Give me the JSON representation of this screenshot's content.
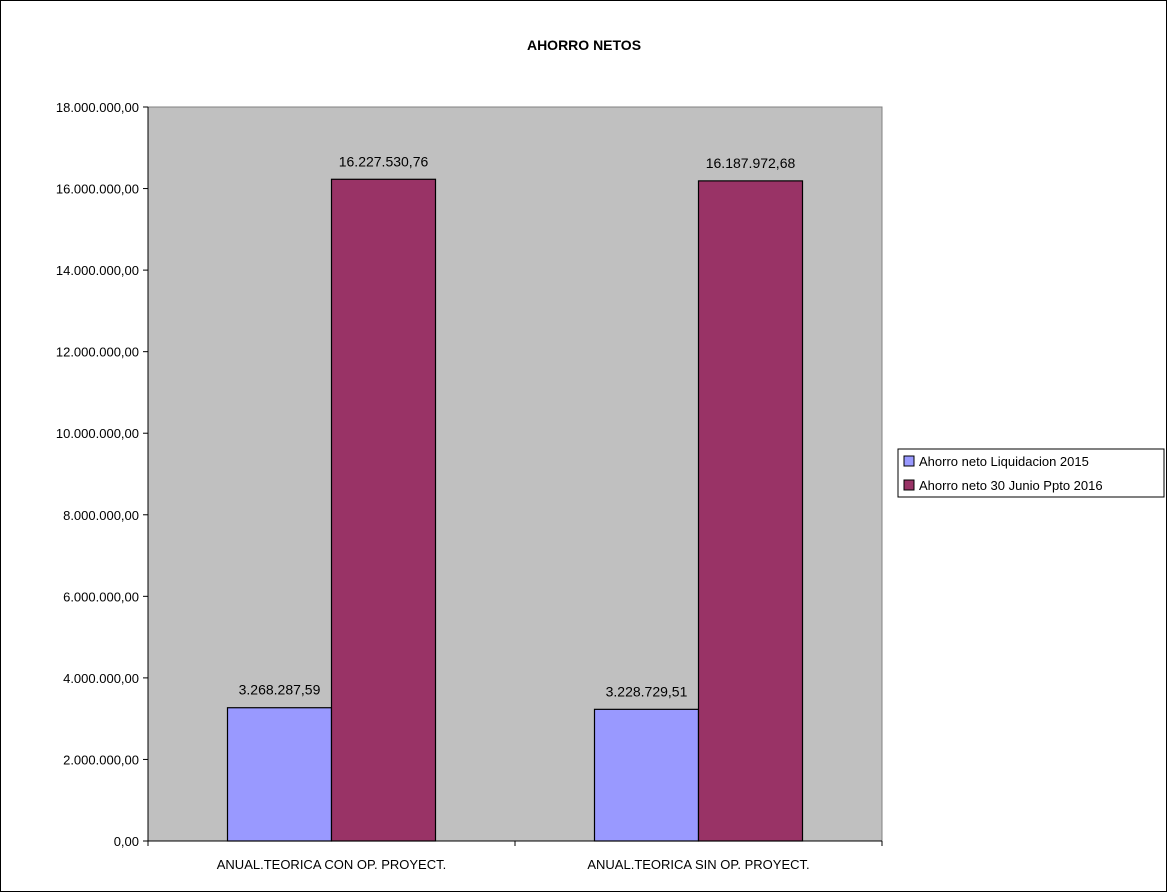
{
  "chart_data": {
    "type": "bar",
    "title": "AHORRO NETOS",
    "categories": [
      "ANUAL.TEORICA CON OP. PROYECT.",
      "ANUAL.TEORICA SIN OP. PROYECT."
    ],
    "series": [
      {
        "name": "Ahorro neto Liquidacion 2015",
        "color": "#9999ff",
        "values": [
          3268287.59,
          3228729.51
        ],
        "labels": [
          "3.268.287,59",
          "3.228.729,51"
        ]
      },
      {
        "name": "Ahorro neto 30 Junio Ppto 2016",
        "color": "#993366",
        "values": [
          16227530.76,
          16187972.68
        ],
        "labels": [
          "16.227.530,76",
          "16.187.972,68"
        ]
      }
    ],
    "ylim": [
      0,
      18000000
    ],
    "yticks": [
      0,
      2000000,
      4000000,
      6000000,
      8000000,
      10000000,
      12000000,
      14000000,
      16000000,
      18000000
    ],
    "ytick_labels": [
      "0,00",
      "2.000.000,00",
      "4.000.000,00",
      "6.000.000,00",
      "8.000.000,00",
      "10.000.000,00",
      "12.000.000,00",
      "14.000.000,00",
      "16.000.000,00",
      "18.000.000,00"
    ],
    "xlabel": "",
    "ylabel": "",
    "grid": false,
    "plot_background": "#c0c0c0",
    "legend_position": "right"
  }
}
